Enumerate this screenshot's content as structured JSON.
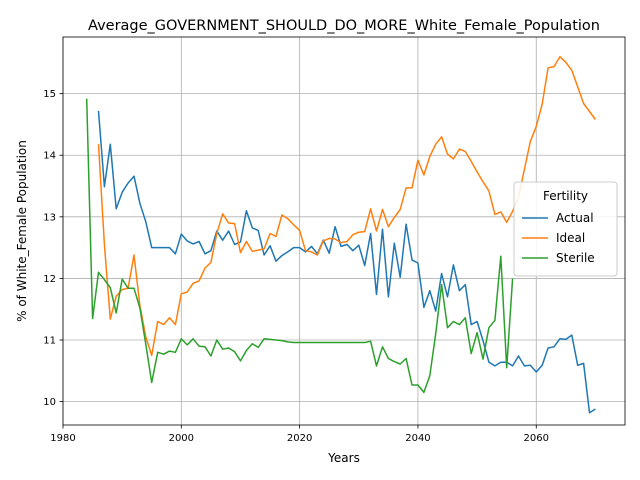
{
  "chart_data": {
    "type": "line",
    "title": "Average_GOVERNMENT_SHOULD_DO_MORE_White_Female_Population",
    "xlabel": "Years",
    "ylabel": "% of White_Female Population",
    "xlim": [
      1980,
      2075
    ],
    "ylim": [
      9.62,
      15.92
    ],
    "xticks": [
      1980,
      2000,
      2020,
      2040,
      2060
    ],
    "yticks": [
      10,
      11,
      12,
      13,
      14,
      15
    ],
    "grid": true,
    "legend": {
      "title": "Fertility",
      "placement": "right"
    },
    "series": [
      {
        "name": "Actual",
        "color": "#1f77b4",
        "x": [
          1986,
          1987,
          1988,
          1989,
          1990,
          1991,
          1992,
          1993,
          1994,
          1995,
          1996,
          1997,
          1998,
          1999,
          2000,
          2001,
          2002,
          2003,
          2004,
          2005,
          2006,
          2007,
          2008,
          2009,
          2010,
          2011,
          2012,
          2013,
          2014,
          2015,
          2016,
          2017,
          2018,
          2019,
          2020,
          2021,
          2022,
          2023,
          2024,
          2025,
          2026,
          2027,
          2028,
          2029,
          2030,
          2031,
          2032,
          2033,
          2034,
          2035,
          2036,
          2037,
          2038,
          2039,
          2040,
          2041,
          2042,
          2043,
          2044,
          2045,
          2046,
          2047,
          2048,
          2049,
          2050,
          2051,
          2052,
          2053,
          2054,
          2055,
          2056,
          2057,
          2058,
          2059,
          2060,
          2061,
          2062,
          2063,
          2064,
          2065,
          2066,
          2067,
          2068,
          2069,
          2070
        ],
        "values": [
          14.72,
          13.49,
          14.18,
          13.13,
          13.4,
          13.55,
          13.66,
          13.22,
          12.92,
          12.5,
          12.5,
          12.5,
          12.5,
          12.4,
          12.72,
          12.61,
          12.56,
          12.6,
          12.4,
          12.45,
          12.77,
          12.62,
          12.77,
          12.55,
          12.59,
          13.1,
          12.82,
          12.78,
          12.38,
          12.53,
          12.28,
          12.37,
          12.43,
          12.5,
          12.5,
          12.43,
          12.52,
          12.4,
          12.62,
          12.41,
          12.84,
          12.52,
          12.55,
          12.45,
          12.54,
          12.21,
          12.73,
          11.74,
          12.8,
          11.7,
          12.57,
          12.02,
          12.88,
          12.3,
          12.25,
          11.53,
          11.8,
          11.47,
          12.08,
          11.7,
          12.22,
          11.8,
          11.9,
          11.25,
          11.3,
          10.99,
          10.64,
          10.58,
          10.64,
          10.64,
          10.58,
          10.74,
          10.58,
          10.59,
          10.48,
          10.59,
          10.87,
          10.89,
          11.02,
          11.01,
          11.08,
          10.59,
          10.62,
          9.82,
          9.88
        ]
      },
      {
        "name": "Ideal",
        "color": "#ff7f0e",
        "x": [
          1986,
          1987,
          1988,
          1989,
          1990,
          1991,
          1992,
          1993,
          1994,
          1995,
          1996,
          1997,
          1998,
          1999,
          2000,
          2001,
          2002,
          2003,
          2004,
          2005,
          2006,
          2007,
          2008,
          2009,
          2010,
          2011,
          2012,
          2013,
          2014,
          2015,
          2016,
          2017,
          2018,
          2019,
          2020,
          2021,
          2022,
          2023,
          2024,
          2025,
          2026,
          2027,
          2028,
          2029,
          2030,
          2031,
          2032,
          2033,
          2034,
          2035,
          2036,
          2037,
          2038,
          2039,
          2040,
          2041,
          2042,
          2043,
          2044,
          2045,
          2046,
          2047,
          2048,
          2049,
          2050,
          2051,
          2052,
          2053,
          2054,
          2055,
          2056,
          2057,
          2058,
          2059,
          2060,
          2061,
          2062,
          2063,
          2064,
          2065,
          2066,
          2067,
          2068,
          2069,
          2070
        ],
        "values": [
          14.18,
          12.55,
          11.34,
          11.71,
          11.82,
          11.84,
          12.38,
          11.56,
          11.05,
          10.75,
          11.3,
          11.25,
          11.36,
          11.25,
          11.75,
          11.78,
          11.92,
          11.96,
          12.17,
          12.26,
          12.73,
          13.05,
          12.9,
          12.89,
          12.42,
          12.6,
          12.44,
          12.46,
          12.48,
          12.73,
          12.68,
          13.03,
          12.97,
          12.87,
          12.78,
          12.45,
          12.43,
          12.38,
          12.61,
          12.65,
          12.64,
          12.58,
          12.6,
          12.71,
          12.75,
          12.76,
          13.13,
          12.77,
          13.12,
          12.84,
          12.99,
          13.12,
          13.47,
          13.47,
          13.92,
          13.68,
          13.98,
          14.18,
          14.3,
          14.02,
          13.94,
          14.1,
          14.06,
          13.9,
          13.73,
          13.57,
          13.42,
          13.04,
          13.08,
          12.91,
          13.09,
          13.32,
          13.77,
          14.22,
          14.47,
          14.83,
          15.42,
          15.44,
          15.6,
          15.51,
          15.38,
          15.11,
          14.84,
          14.71,
          14.58
        ]
      },
      {
        "name": "Sterile",
        "color": "#2ca02c",
        "x": [
          1984,
          1985,
          1986,
          1987,
          1988,
          1989,
          1990,
          1991,
          1992,
          1993,
          1994,
          1995,
          1996,
          1997,
          1998,
          1999,
          2000,
          2001,
          2002,
          2003,
          2004,
          2005,
          2006,
          2007,
          2008,
          2009,
          2010,
          2011,
          2012,
          2013,
          2014,
          2015,
          2016,
          2017,
          2018,
          2019,
          2020,
          2021,
          2022,
          2023,
          2024,
          2025,
          2026,
          2027,
          2028,
          2029,
          2030,
          2031,
          2032,
          2033,
          2034,
          2035,
          2036,
          2037,
          2038,
          2039,
          2040,
          2041,
          2042,
          2043,
          2044,
          2045,
          2046,
          2047,
          2048,
          2049,
          2050,
          2051,
          2052,
          2053,
          2054,
          2055,
          2056
        ],
        "values": [
          14.92,
          11.35,
          12.1,
          11.98,
          11.85,
          11.44,
          11.99,
          11.84,
          11.84,
          11.52,
          10.93,
          10.31,
          10.8,
          10.77,
          10.82,
          10.8,
          11.02,
          10.92,
          11.02,
          10.9,
          10.89,
          10.74,
          11.0,
          10.85,
          10.87,
          10.81,
          10.66,
          10.83,
          10.94,
          10.88,
          11.02,
          11.01,
          11.0,
          10.99,
          10.97,
          10.96,
          10.96,
          10.96,
          10.96,
          10.96,
          10.96,
          10.96,
          10.96,
          10.96,
          10.96,
          10.96,
          10.96,
          10.96,
          10.98,
          10.58,
          10.89,
          10.7,
          10.65,
          10.61,
          10.7,
          10.27,
          10.27,
          10.15,
          10.42,
          11.1,
          11.9,
          11.2,
          11.3,
          11.25,
          11.36,
          10.78,
          11.12,
          10.69,
          11.2,
          11.32,
          12.36,
          10.55,
          12.0
        ]
      }
    ]
  }
}
